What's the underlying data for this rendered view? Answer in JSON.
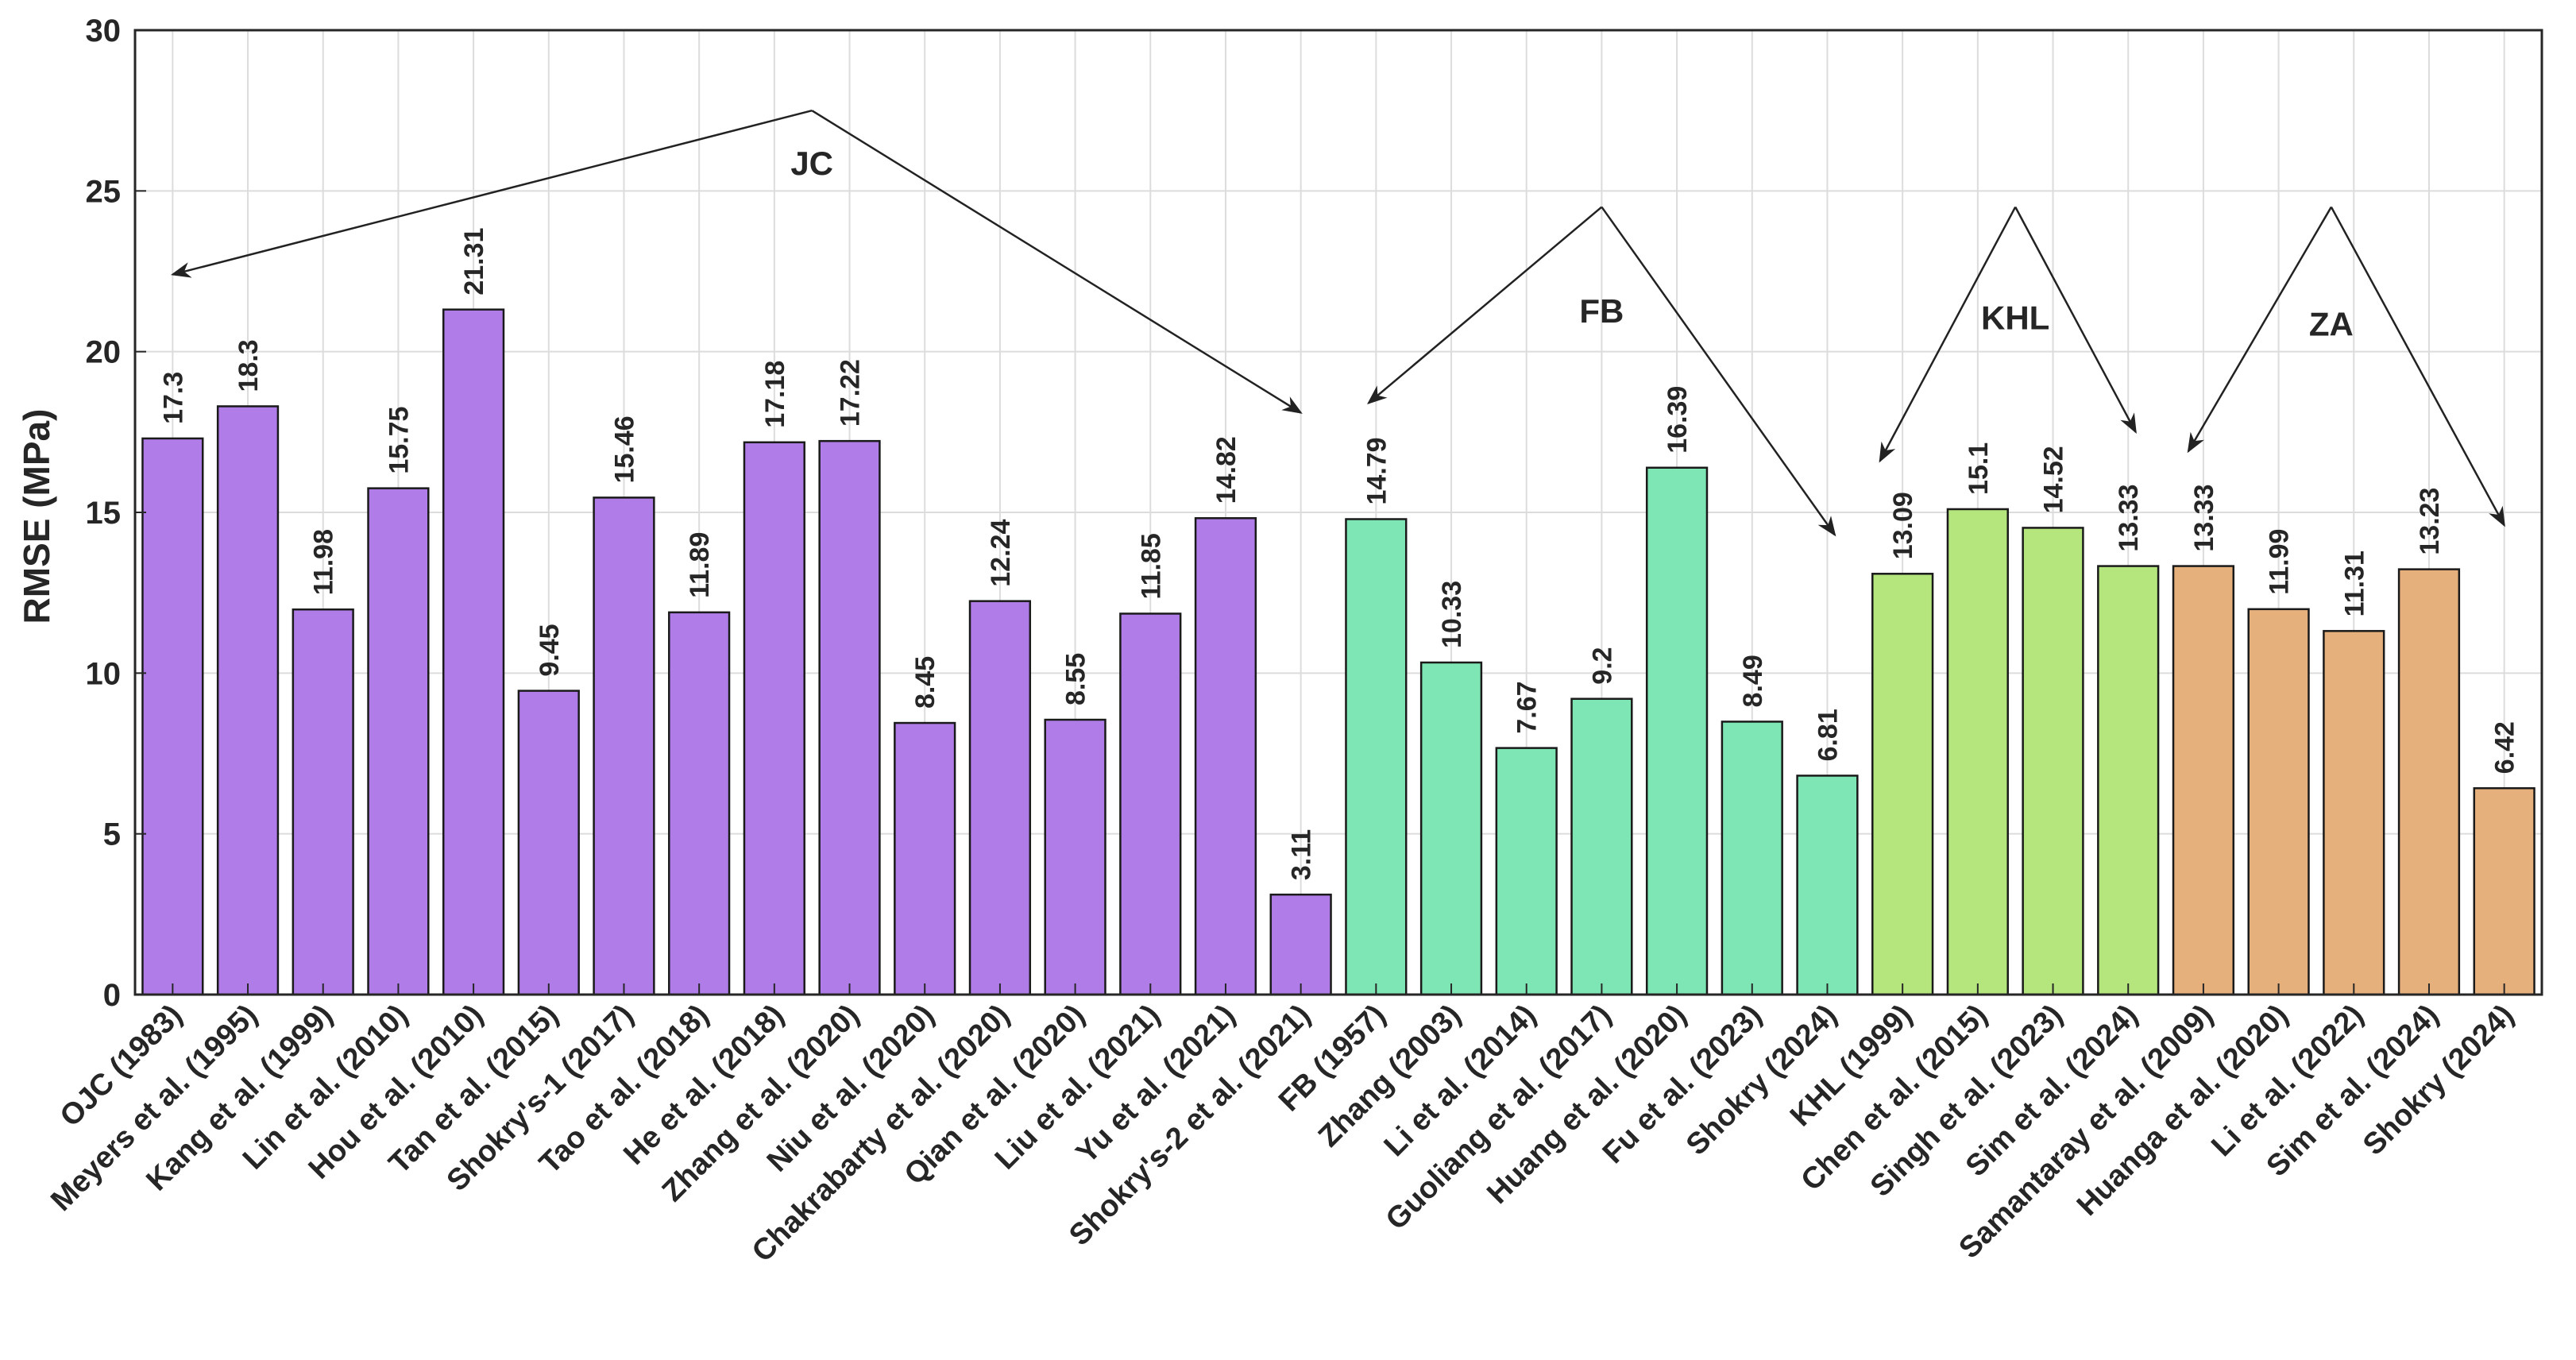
{
  "chart_data": {
    "type": "bar",
    "title": "",
    "xlabel": "",
    "ylabel": "RMSE (MPa)",
    "ylim": [
      0,
      30
    ],
    "yticks": [
      0,
      5,
      10,
      15,
      20,
      25,
      30
    ],
    "grid": true,
    "categories": [
      "OJC (1983)",
      "Meyers et al. (1995)",
      "Kang et al. (1999)",
      "Lin et al. (2010)",
      "Hou et al. (2010)",
      "Tan et al. (2015)",
      "Shokry's-1 (2017)",
      "Tao et al. (2018)",
      "He et al. (2018)",
      "Zhang et al. (2020)",
      "Niu et al. (2020)",
      "Chakrabarty et al. (2020)",
      "Qian et al. (2020)",
      "Liu et al. (2021)",
      "Yu et al. (2021)",
      "Shokry's-2 et al. (2021)",
      "FB (1957)",
      "Zhang (2003)",
      "Li et al. (2014)",
      "Guoliang et al. (2017)",
      "Huang et al. (2020)",
      "Fu et al. (2023)",
      "Shokry (2024)",
      "KHL (1999)",
      "Chen et al. (2015)",
      "Singh et al. (2023)",
      "Sim et al. (2024)",
      "Samantaray et al. (2009)",
      "Huanga et al. (2020)",
      "Li et al. (2022)",
      "Sim et al. (2024)",
      "Shokry (2024)"
    ],
    "values": [
      17.3,
      18.3,
      11.98,
      15.75,
      21.31,
      9.45,
      15.46,
      11.89,
      17.18,
      17.22,
      8.45,
      12.24,
      8.55,
      11.85,
      14.82,
      3.11,
      14.79,
      10.33,
      7.67,
      9.2,
      16.39,
      8.49,
      6.81,
      13.09,
      15.1,
      14.52,
      13.33,
      13.33,
      11.99,
      11.31,
      13.23,
      6.42
    ],
    "value_labels": [
      "17.3",
      "18.3",
      "11.98",
      "15.75",
      "21.31",
      "9.45",
      "15.46",
      "11.89",
      "17.18",
      "17.22",
      "8.45",
      "12.24",
      "8.55",
      "11.85",
      "14.82",
      "3.11",
      "14.79",
      "10.33",
      "7.67",
      "9.2",
      "16.39",
      "8.49",
      "6.81",
      "13.09",
      "15.1",
      "14.52",
      "13.33",
      "13.33",
      "11.99",
      "11.31",
      "13.23",
      "6.42"
    ],
    "groups": [
      {
        "name": "JC",
        "start": 0,
        "end": 15,
        "color": "#b07de8",
        "apex": [
          9,
          27.5
        ],
        "label_at": [
          9,
          25.5
        ],
        "arrows_to": [
          [
            0.5,
            22.4
          ],
          [
            15.5,
            18.1
          ]
        ]
      },
      {
        "name": "FB",
        "start": 16,
        "end": 22,
        "color": "#7de6b4",
        "apex": [
          19.5,
          24.5
        ],
        "label_at": [
          19.5,
          20.9
        ],
        "arrows_to": [
          [
            16.4,
            18.4
          ],
          [
            22.6,
            14.3
          ]
        ]
      },
      {
        "name": "KHL",
        "start": 23,
        "end": 26,
        "color": "#b4e67d",
        "apex": [
          25,
          24.5
        ],
        "label_at": [
          25,
          20.7
        ],
        "arrows_to": [
          [
            23.2,
            16.6
          ],
          [
            26.6,
            17.5
          ]
        ]
      },
      {
        "name": "ZA",
        "start": 27,
        "end": 31,
        "color": "#e6b07d",
        "apex": [
          29.2,
          24.5
        ],
        "label_at": [
          29.2,
          20.5
        ],
        "arrows_to": [
          [
            27.3,
            16.9
          ],
          [
            31.5,
            14.6
          ]
        ]
      }
    ]
  }
}
